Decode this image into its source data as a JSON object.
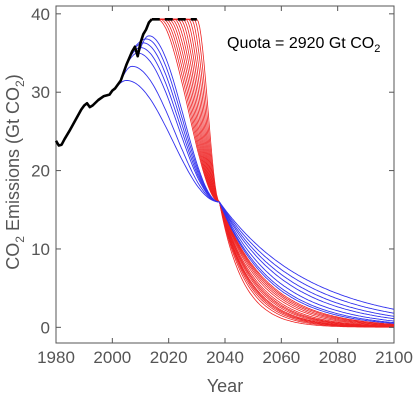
{
  "chart_data": {
    "type": "line",
    "xlabel": "Year",
    "ylabel": {
      "prefix": "CO",
      "sub": "2",
      "suffix": " Emissions (Gt CO",
      "sub2": "2",
      "close": ")"
    },
    "xlim": [
      1980,
      2100
    ],
    "ylim": [
      -2,
      41
    ],
    "x_ticks": [
      1980,
      2000,
      2020,
      2040,
      2060,
      2080,
      2100
    ],
    "y_ticks": [
      0,
      10,
      20,
      30,
      40
    ],
    "grid": false,
    "annotation": {
      "text": "Quota = 2920 Gt CO",
      "sub": "2"
    },
    "colors": {
      "historical": "#000000",
      "blue_series": "#3333ee",
      "red_series": "#ee2222",
      "axis": "#555555"
    },
    "historical": {
      "x": [
        1980,
        1981,
        1982,
        1983,
        1985,
        1987,
        1989,
        1990,
        1991,
        1992,
        1993,
        1995,
        1997,
        1999,
        2000,
        2001,
        2003,
        2005,
        2007,
        2008,
        2009,
        2010,
        2011,
        2012,
        2013,
        2014
      ],
      "y": [
        23.8,
        23.2,
        23.3,
        24.0,
        25.2,
        26.5,
        27.8,
        28.3,
        28.6,
        28.1,
        28.3,
        29.0,
        29.5,
        29.7,
        30.2,
        30.5,
        31.5,
        33.5,
        35.2,
        35.8,
        34.6,
        36.3,
        37.4,
        38.0,
        38.9,
        39.3
      ]
    },
    "projection_dashed": {
      "x": [
        2014,
        2030
      ],
      "y": [
        39.3,
        39.3
      ]
    },
    "convergence_point": {
      "x": 2038,
      "y": 16
    },
    "blue_series": [
      {
        "peak_year": 2005,
        "peak": 31.5,
        "tail_2100": 2.3
      },
      {
        "peak_year": 2007,
        "peak": 33.3,
        "tail_2100": 1.8
      },
      {
        "peak_year": 2009,
        "peak": 35.0,
        "tail_2100": 1.4
      },
      {
        "peak_year": 2010,
        "peak": 35.7,
        "tail_2100": 1.1
      },
      {
        "peak_year": 2011,
        "peak": 36.3,
        "tail_2100": 0.8
      },
      {
        "peak_year": 2012,
        "peak": 36.8,
        "tail_2100": 0.6
      },
      {
        "peak_year": 2013,
        "peak": 37.2,
        "tail_2100": 0.5
      }
    ],
    "red_series": [
      {
        "plateau_end": 2016,
        "tail_2100": 0.4
      },
      {
        "plateau_end": 2017,
        "tail_2100": 0.35
      },
      {
        "plateau_end": 2018,
        "tail_2100": 0.3
      },
      {
        "plateau_end": 2019,
        "tail_2100": 0.25
      },
      {
        "plateau_end": 2020,
        "tail_2100": 0.2
      },
      {
        "plateau_end": 2021,
        "tail_2100": 0.15
      },
      {
        "plateau_end": 2022,
        "tail_2100": 0.12
      },
      {
        "plateau_end": 2023,
        "tail_2100": 0.1
      },
      {
        "plateau_end": 2024,
        "tail_2100": 0.08
      },
      {
        "plateau_end": 2025,
        "tail_2100": 0.06
      },
      {
        "plateau_end": 2026,
        "tail_2100": 0.05
      },
      {
        "plateau_end": 2027,
        "tail_2100": 0.04
      },
      {
        "plateau_end": 2028,
        "tail_2100": 0.03
      },
      {
        "plateau_end": 2029,
        "tail_2100": 0.02
      },
      {
        "plateau_end": 2030,
        "tail_2100": 0.01
      }
    ]
  }
}
